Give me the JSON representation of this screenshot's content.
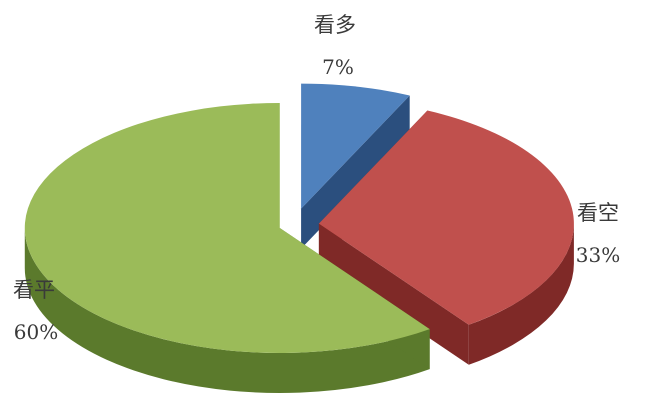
{
  "chart_data": {
    "type": "pie",
    "three_d": true,
    "exploded": true,
    "slices": [
      {
        "label": "看多",
        "value": 7,
        "value_label": "7%",
        "color": "#4f81bd",
        "side_color": "#2b4f7e"
      },
      {
        "label": "看空",
        "value": 33,
        "value_label": "33%",
        "color": "#c0504d",
        "side_color": "#7f2927"
      },
      {
        "label": "看平",
        "value": 60,
        "value_label": "60%",
        "color": "#9bbb59",
        "side_color": "#5b7a2c"
      }
    ]
  }
}
